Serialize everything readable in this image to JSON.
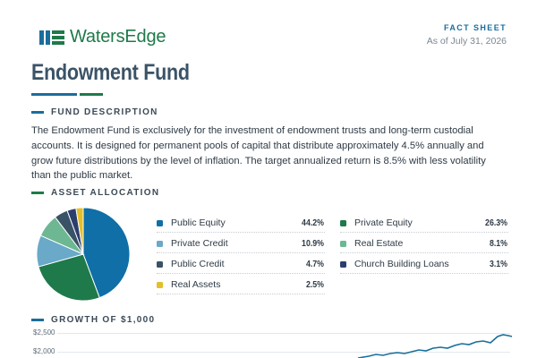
{
  "header": {
    "brand": "WatersEdge",
    "fact_label": "FACT SHEET",
    "as_of": "As of July 31, 2026"
  },
  "title": "Endowment Fund",
  "colors": {
    "blue": "#1a6e9c",
    "green": "#1e7a4a",
    "title": "#3b5367"
  },
  "fund_description": {
    "heading": "FUND DESCRIPTION",
    "lines": [
      "The Endowment Fund is exclusively for the investment of endowment trusts and long-term custodial",
      "accounts. It is designed for permanent pools of capital that distribute approximately 4.5% annually and",
      "grow future distributions by the level of inflation. The target annualized return is 8.5% with less volatility",
      "than the public market."
    ]
  },
  "asset_allocation": {
    "heading": "ASSET ALLOCATION",
    "items": [
      {
        "name": "Public Equity",
        "value": "44.2%",
        "pct": 44.2,
        "color": "#0f6fa6"
      },
      {
        "name": "Private Equity",
        "value": "26.3%",
        "pct": 26.3,
        "color": "#1e7a4a"
      },
      {
        "name": "Private Credit",
        "value": "10.9%",
        "pct": 10.9,
        "color": "#6aa9c8"
      },
      {
        "name": "Real Estate",
        "value": "8.1%",
        "pct": 8.1,
        "color": "#6db892"
      },
      {
        "name": "Public Credit",
        "value": "4.7%",
        "pct": 4.7,
        "color": "#3a5266"
      },
      {
        "name": "Church Building Loans",
        "value": "3.1%",
        "pct": 3.1,
        "color": "#2b3f6e"
      },
      {
        "name": "Real Assets",
        "value": "2.5%",
        "pct": 2.5,
        "color": "#e3bf2a"
      }
    ]
  },
  "growth": {
    "heading": "GROWTH OF $1,000",
    "y_ticks": [
      "$2,500",
      "$2,000"
    ]
  },
  "chart_data": {
    "type": "pie",
    "title": "ASSET ALLOCATION",
    "categories": [
      "Public Equity",
      "Private Equity",
      "Private Credit",
      "Real Estate",
      "Public Credit",
      "Church Building Loans",
      "Real Assets"
    ],
    "values": [
      44.2,
      26.3,
      10.9,
      8.1,
      4.7,
      3.1,
      2.5
    ]
  }
}
